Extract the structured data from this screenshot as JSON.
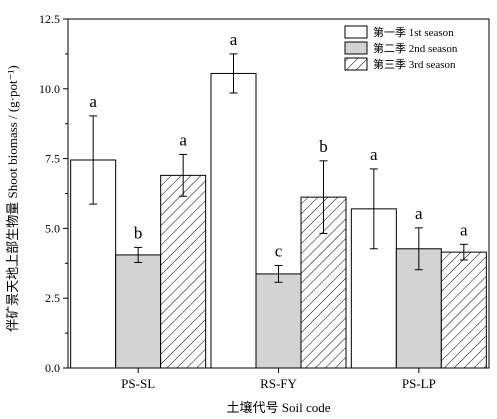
{
  "chart_data": {
    "type": "bar",
    "xlabel": "土壤代号 Soil code",
    "ylabel": "伴矿景天地上部生物量 Shoot biomass / (g·pot⁻¹)",
    "ylim": [
      0,
      12.5
    ],
    "yticks": [
      "0.0",
      "2.5",
      "5.0",
      "7.5",
      "10.0",
      "12.5"
    ],
    "ytick_values": [
      0,
      2.5,
      5.0,
      7.5,
      10.0,
      12.5
    ],
    "categories": [
      "PS-SL",
      "RS-FY",
      "PS-LP"
    ],
    "legend_position": "top-right",
    "series": [
      {
        "name": "第一季 1st season",
        "pattern": "white",
        "values": [
          7.45,
          10.55,
          5.7
        ],
        "errors": [
          1.58,
          0.7,
          1.43
        ],
        "labels": [
          "a",
          "a",
          "a"
        ]
      },
      {
        "name": "第二季 2nd season",
        "pattern": "gray",
        "values": [
          4.05,
          3.37,
          4.27
        ],
        "errors": [
          0.27,
          0.3,
          0.75
        ],
        "labels": [
          "b",
          "c",
          "a"
        ]
      },
      {
        "name": "第三季 3rd season",
        "pattern": "hatch",
        "values": [
          6.9,
          6.12,
          4.15
        ],
        "errors": [
          0.75,
          1.3,
          0.28
        ],
        "labels": [
          "a",
          "b",
          "a"
        ]
      }
    ],
    "colors": {
      "gray_fill": "#d3d3d3",
      "white_fill": "#ffffff",
      "line": "#000000"
    }
  }
}
